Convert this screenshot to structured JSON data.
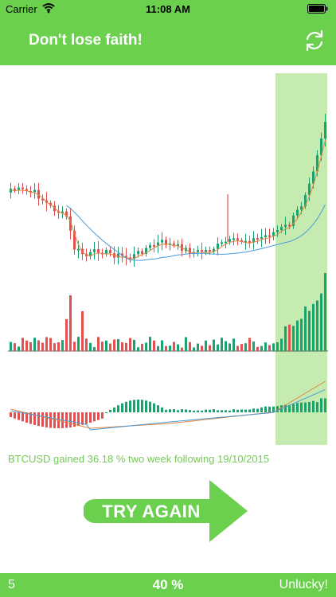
{
  "status_bar": {
    "carrier": "Carrier",
    "time": "11:08 AM"
  },
  "header": {
    "title": "Don't lose faith!",
    "refresh_icon": "refresh-icon"
  },
  "caption": "BTCUSD gained 36.18 % two week following 19/10/2015",
  "action": {
    "label": "TRY AGAIN"
  },
  "footer": {
    "left": "5",
    "center": "40 %",
    "right": "Unlucky!"
  },
  "colors": {
    "brand_green": "#6cd04f",
    "up_candle": "#1aa36f",
    "down_candle": "#e35050",
    "ma_fast": "#e0853d",
    "ma_slow": "#4a9bd8",
    "highlight": "#c6ebb0",
    "caption_text": "#76c85a"
  },
  "chart_data": {
    "type": "candlestick",
    "highlighted_region": "last two weeks",
    "panels": [
      "price",
      "volume",
      "macd"
    ]
  }
}
